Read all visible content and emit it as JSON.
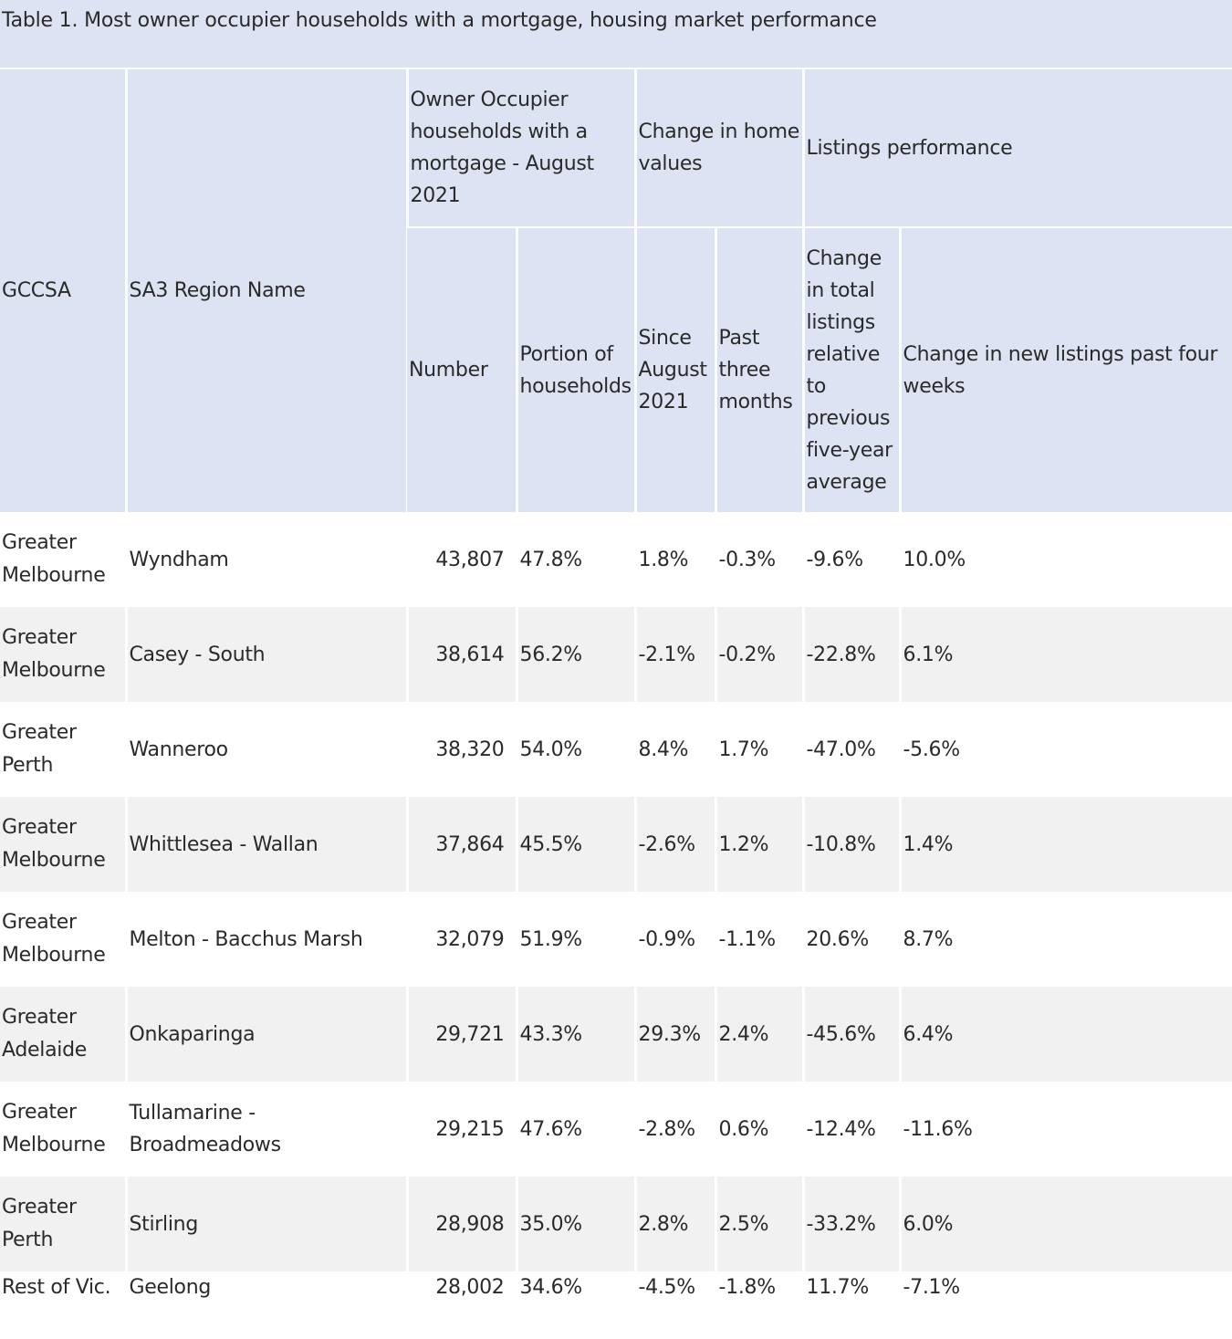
{
  "caption": "Table 1. Most owner occupier households with a mortgage, housing market performance",
  "headers": {
    "gccsa": "GCCSA",
    "sa3": "SA3 Region Name",
    "owner_group": "Owner Occupier households with a mortgage - August 2021",
    "home_values_group": "Change in home values",
    "listings_group": "Listings performance",
    "number": "Number",
    "portion": "Portion of households",
    "since_aug": "Since August 2021",
    "past_three": "Past three months",
    "total_listings": "Change in total listings relative to previous five-year average",
    "new_listings": "Change in new listings past four weeks"
  },
  "rows": [
    {
      "gccsa": "Greater Melbourne",
      "region": "Wyndham",
      "number": "43,807",
      "portion": "47.8%",
      "since_aug": "1.8%",
      "past_three": "-0.3%",
      "total_listings": "-9.6%",
      "new_listings": "10.0%"
    },
    {
      "gccsa": "Greater Melbourne",
      "region": "Casey - South",
      "number": "38,614",
      "portion": "56.2%",
      "since_aug": "-2.1%",
      "past_three": "-0.2%",
      "total_listings": "-22.8%",
      "new_listings": "6.1%"
    },
    {
      "gccsa": "Greater Perth",
      "region": "Wanneroo",
      "number": "38,320",
      "portion": "54.0%",
      "since_aug": "8.4%",
      "past_three": "1.7%",
      "total_listings": "-47.0%",
      "new_listings": "-5.6%"
    },
    {
      "gccsa": "Greater Melbourne",
      "region": "Whittlesea - Wallan",
      "number": "37,864",
      "portion": "45.5%",
      "since_aug": "-2.6%",
      "past_three": "1.2%",
      "total_listings": "-10.8%",
      "new_listings": "1.4%"
    },
    {
      "gccsa": "Greater Melbourne",
      "region": "Melton - Bacchus Marsh",
      "number": "32,079",
      "portion": "51.9%",
      "since_aug": "-0.9%",
      "past_three": "-1.1%",
      "total_listings": "20.6%",
      "new_listings": "8.7%"
    },
    {
      "gccsa": "Greater Adelaide",
      "region": "Onkaparinga",
      "number": "29,721",
      "portion": "43.3%",
      "since_aug": "29.3%",
      "past_three": "2.4%",
      "total_listings": "-45.6%",
      "new_listings": "6.4%"
    },
    {
      "gccsa": "Greater Melbourne",
      "region": "Tullamarine - Broadmeadows",
      "number": "29,215",
      "portion": "47.6%",
      "since_aug": "-2.8%",
      "past_three": "0.6%",
      "total_listings": "-12.4%",
      "new_listings": "-11.6%"
    },
    {
      "gccsa": "Greater Perth",
      "region": "Stirling",
      "number": "28,908",
      "portion": "35.0%",
      "since_aug": "2.8%",
      "past_three": "2.5%",
      "total_listings": "-33.2%",
      "new_listings": "6.0%"
    },
    {
      "gccsa": "Rest of Vic.",
      "region": "Geelong",
      "number": "28,002",
      "portion": "34.6%",
      "since_aug": "-4.5%",
      "past_three": "-1.8%",
      "total_listings": "11.7%",
      "new_listings": "-7.1%"
    }
  ]
}
